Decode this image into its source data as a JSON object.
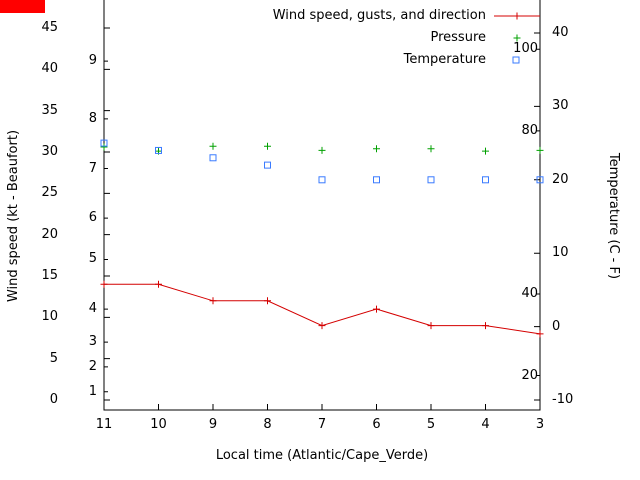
{
  "window": {
    "background": "#ffffff",
    "top_left_box_color": "#ff0000"
  },
  "chart_data": {
    "type": "line",
    "title": "",
    "xlabel": "Local time (Atlantic/Cape_Verde)",
    "ylabel_left": "Wind speed (kt - Beaufort)",
    "ylabel_right": "Temperature (C - F)",
    "grid": false,
    "legend_position": "top-right-inside",
    "x_categories": [
      11,
      10,
      9,
      8,
      7,
      6,
      5,
      4,
      3
    ],
    "left_axis": {
      "unit": "kt",
      "ticks": [
        0,
        5,
        10,
        15,
        20,
        25,
        30,
        35,
        40,
        45
      ],
      "range": [
        0,
        48.5
      ]
    },
    "beaufort_ticks": [
      {
        "label": "1",
        "kt": 1
      },
      {
        "label": "2",
        "kt": 4
      },
      {
        "label": "3",
        "kt": 7
      },
      {
        "label": "4",
        "kt": 11
      },
      {
        "label": "5",
        "kt": 17
      },
      {
        "label": "6",
        "kt": 22
      },
      {
        "label": "7",
        "kt": 28
      },
      {
        "label": "8",
        "kt": 34
      },
      {
        "label": "9",
        "kt": 41
      }
    ],
    "right_axis": {
      "unit": "C",
      "ticks": [
        -10,
        0,
        10,
        20,
        30,
        40
      ],
      "range": [
        -10,
        44
      ]
    },
    "fahrenheit_ticks": [
      {
        "label": "20",
        "f": 20
      },
      {
        "label": "40",
        "f": 40
      },
      {
        "label": "80",
        "f": 80
      },
      {
        "label": "100",
        "f": 100
      }
    ],
    "series": [
      {
        "name": "Wind speed, gusts, and direction",
        "color": "#d40000",
        "marker": "plus",
        "line": true,
        "axis": "left",
        "values": [
          14,
          14,
          12,
          12,
          9,
          11,
          9,
          9,
          8
        ]
      },
      {
        "name": "Pressure",
        "color": "#00a000",
        "marker": "plus",
        "line": false,
        "axis": "left",
        "values": [
          30.6,
          30.1,
          30.7,
          30.7,
          30.2,
          30.4,
          30.4,
          30.1,
          30.2
        ]
      },
      {
        "name": "Temperature",
        "color": "#3a7bff",
        "marker": "square-open",
        "line": false,
        "axis": "right",
        "values": [
          25,
          24,
          23,
          22,
          20,
          20,
          20,
          20,
          20
        ]
      }
    ]
  }
}
